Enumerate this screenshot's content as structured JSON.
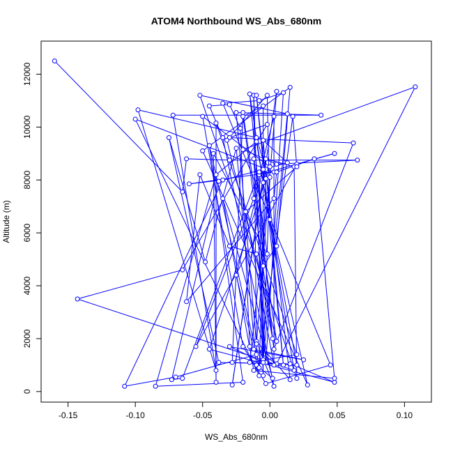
{
  "chart_data": {
    "type": "line",
    "title": "ATOM4 Northbound WS_Abs_680nm",
    "xlabel": "WS_Abs_680nm",
    "ylabel": "Altitude (m)",
    "xlim": [
      -0.17,
      0.12
    ],
    "ylim": [
      -400,
      13250
    ],
    "x_ticks": [
      -0.15,
      -0.1,
      -0.05,
      0.0,
      0.05,
      0.1
    ],
    "x_tick_labels": [
      "-0.15",
      "-0.10",
      "-0.05",
      "0.00",
      "0.05",
      "0.10"
    ],
    "y_ticks": [
      0,
      2000,
      4000,
      6000,
      8000,
      10000,
      12000
    ],
    "y_tick_labels": [
      "0",
      "2000",
      "4000",
      "6000",
      "8000",
      "10000",
      "12000"
    ],
    "grid": false,
    "series_color": "#0000ff",
    "marker": "open-circle",
    "points": [
      {
        "x": -0.16,
        "y": 12500
      },
      {
        "x": -0.065,
        "y": 7550
      },
      {
        "x": -0.062,
        "y": 8800
      },
      {
        "x": -0.03,
        "y": 8750
      },
      {
        "x": 0.065,
        "y": 8750
      },
      {
        "x": 0.005,
        "y": 8600
      },
      {
        "x": -0.02,
        "y": 9150
      },
      {
        "x": 0.108,
        "y": 11520
      },
      {
        "x": 0.005,
        "y": 1050
      },
      {
        "x": -0.015,
        "y": 1700
      },
      {
        "x": -0.022,
        "y": 9950
      },
      {
        "x": -0.03,
        "y": 10850
      },
      {
        "x": -0.045,
        "y": 10800
      },
      {
        "x": -0.035,
        "y": 9600
      },
      {
        "x": 0.003,
        "y": 200
      },
      {
        "x": -0.01,
        "y": 1900
      },
      {
        "x": 0.015,
        "y": 450
      },
      {
        "x": -0.003,
        "y": 8400
      },
      {
        "x": -0.01,
        "y": 9600
      },
      {
        "x": -0.098,
        "y": 10650
      },
      {
        "x": -0.04,
        "y": 800
      },
      {
        "x": -0.072,
        "y": 10450
      },
      {
        "x": 0.038,
        "y": 10450
      },
      {
        "x": -0.025,
        "y": 10550
      },
      {
        "x": -0.008,
        "y": 600
      },
      {
        "x": -0.1,
        "y": 10300
      },
      {
        "x": 0.003,
        "y": 8300
      },
      {
        "x": -0.06,
        "y": 7850
      },
      {
        "x": -0.035,
        "y": 8000
      },
      {
        "x": -0.108,
        "y": 200
      },
      {
        "x": -0.07,
        "y": 550
      },
      {
        "x": -0.01,
        "y": 1400
      },
      {
        "x": -0.045,
        "y": 9300
      },
      {
        "x": -0.02,
        "y": 350
      },
      {
        "x": -0.085,
        "y": 200
      },
      {
        "x": -0.04,
        "y": 8200
      },
      {
        "x": -0.01,
        "y": 9450
      },
      {
        "x": 0.018,
        "y": 800
      },
      {
        "x": -0.143,
        "y": 3500
      },
      {
        "x": -0.065,
        "y": 4600
      },
      {
        "x": -0.002,
        "y": 10100
      },
      {
        "x": -0.03,
        "y": 9600
      },
      {
        "x": 0.062,
        "y": 9400
      },
      {
        "x": 0.003,
        "y": 1600
      },
      {
        "x": -0.02,
        "y": 10400
      },
      {
        "x": -0.005,
        "y": 10800
      },
      {
        "x": -0.005,
        "y": 600
      },
      {
        "x": -0.012,
        "y": 11200
      },
      {
        "x": -0.01,
        "y": 1800
      },
      {
        "x": 0.005,
        "y": 11350
      },
      {
        "x": -0.028,
        "y": 250
      },
      {
        "x": -0.003,
        "y": 8800
      },
      {
        "x": 0.018,
        "y": 8500
      },
      {
        "x": 0.02,
        "y": 500
      },
      {
        "x": -0.052,
        "y": 11200
      },
      {
        "x": 0.013,
        "y": 10500
      },
      {
        "x": -0.005,
        "y": 1200
      },
      {
        "x": 0.0,
        "y": 8100
      },
      {
        "x": -0.015,
        "y": 1100
      },
      {
        "x": 0.02,
        "y": 1400
      },
      {
        "x": -0.04,
        "y": 10150
      },
      {
        "x": -0.04,
        "y": 350
      },
      {
        "x": -0.042,
        "y": 9000
      },
      {
        "x": -0.002,
        "y": 5200
      },
      {
        "x": -0.012,
        "y": 8800
      },
      {
        "x": -0.003,
        "y": 1100
      },
      {
        "x": 0.01,
        "y": 11300
      },
      {
        "x": -0.008,
        "y": 11000
      },
      {
        "x": -0.035,
        "y": 10900
      },
      {
        "x": 0.045,
        "y": 1000
      },
      {
        "x": -0.003,
        "y": 300
      },
      {
        "x": -0.02,
        "y": 1700
      },
      {
        "x": -0.05,
        "y": 10400
      },
      {
        "x": 0.0,
        "y": 8500
      },
      {
        "x": -0.045,
        "y": 1600
      },
      {
        "x": 0.048,
        "y": 350
      },
      {
        "x": 0.015,
        "y": 1050
      },
      {
        "x": -0.038,
        "y": 1100
      },
      {
        "x": -0.075,
        "y": 9600
      },
      {
        "x": -0.048,
        "y": 4900
      },
      {
        "x": -0.025,
        "y": 9200
      },
      {
        "x": -0.01,
        "y": 1000
      },
      {
        "x": 0.002,
        "y": 500
      },
      {
        "x": -0.035,
        "y": 7300
      },
      {
        "x": -0.012,
        "y": 800
      },
      {
        "x": 0.048,
        "y": 500
      },
      {
        "x": 0.033,
        "y": 8800
      },
      {
        "x": 0.005,
        "y": 8300
      },
      {
        "x": 0.003,
        "y": 7300
      },
      {
        "x": -0.062,
        "y": 3400
      },
      {
        "x": -0.052,
        "y": 8200
      },
      {
        "x": -0.03,
        "y": 5500
      },
      {
        "x": -0.01,
        "y": 5200
      },
      {
        "x": 0.002,
        "y": 2000
      },
      {
        "x": -0.015,
        "y": 11250
      },
      {
        "x": -0.005,
        "y": 7900
      },
      {
        "x": 0.02,
        "y": 1000
      },
      {
        "x": -0.028,
        "y": 1100
      },
      {
        "x": -0.02,
        "y": 10550
      },
      {
        "x": 0.005,
        "y": 1900
      },
      {
        "x": -0.032,
        "y": 9500
      },
      {
        "x": -0.002,
        "y": 11200
      },
      {
        "x": 0.0,
        "y": 6500
      },
      {
        "x": 0.028,
        "y": 250
      },
      {
        "x": -0.05,
        "y": 9100
      },
      {
        "x": 0.015,
        "y": 11500
      },
      {
        "x": 0.005,
        "y": 5500
      },
      {
        "x": -0.005,
        "y": 4750
      },
      {
        "x": -0.008,
        "y": 8200
      },
      {
        "x": 0.048,
        "y": 9000
      },
      {
        "x": 0.02,
        "y": 8600
      },
      {
        "x": -0.055,
        "y": 1700
      },
      {
        "x": -0.012,
        "y": 7300
      },
      {
        "x": 0.003,
        "y": 10400
      },
      {
        "x": 0.003,
        "y": 1000
      },
      {
        "x": -0.018,
        "y": 6800
      },
      {
        "x": 0.02,
        "y": 8500
      },
      {
        "x": 0.017,
        "y": 10400
      },
      {
        "x": -0.008,
        "y": 900
      },
      {
        "x": -0.003,
        "y": 8050
      },
      {
        "x": -0.01,
        "y": 11200
      },
      {
        "x": 0.01,
        "y": 1000
      },
      {
        "x": -0.005,
        "y": 9500
      },
      {
        "x": 0.013,
        "y": 8650
      },
      {
        "x": -0.038,
        "y": 7950
      },
      {
        "x": -0.073,
        "y": 450
      },
      {
        "x": -0.065,
        "y": 500
      },
      {
        "x": -0.008,
        "y": 8300
      },
      {
        "x": -0.005,
        "y": 1100
      },
      {
        "x": -0.03,
        "y": 1700
      },
      {
        "x": 0.025,
        "y": 1200
      },
      {
        "x": -0.012,
        "y": 1600
      },
      {
        "x": -0.025,
        "y": 4400
      },
      {
        "x": -0.005,
        "y": 8400
      }
    ]
  }
}
